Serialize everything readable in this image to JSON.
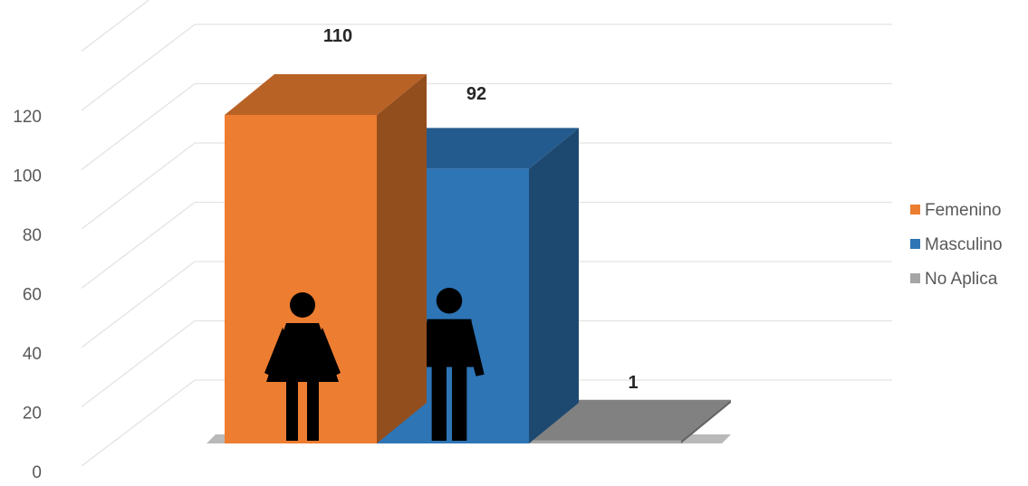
{
  "chart_data": {
    "type": "bar",
    "categories": [
      ""
    ],
    "series": [
      {
        "name": "Femenino",
        "values": [
          110
        ],
        "color": "#ED7D31",
        "icon": "female-person-icon"
      },
      {
        "name": "Masculino",
        "values": [
          92
        ],
        "color": "#2E75B6",
        "icon": "male-person-icon"
      },
      {
        "name": "No Aplica",
        "values": [
          1
        ],
        "color": "#A5A5A5",
        "icon": ""
      }
    ],
    "data_labels": [
      "110",
      "92",
      "1"
    ],
    "title": "",
    "xlabel": "",
    "ylabel": "",
    "ylim": [
      0,
      140
    ],
    "y_ticks": [
      "0",
      "20",
      "40",
      "60",
      "80",
      "100",
      "120"
    ],
    "grid": true,
    "three_d": true,
    "legend_position": "right"
  }
}
